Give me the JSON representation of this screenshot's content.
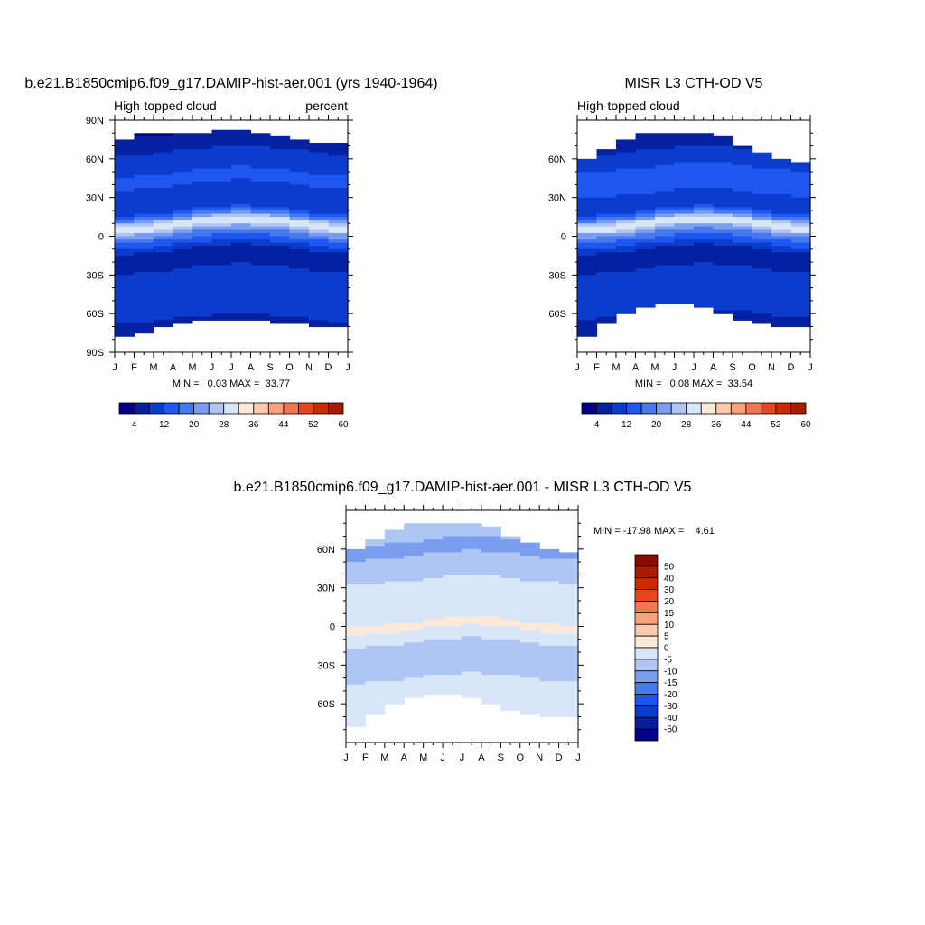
{
  "palettes": {
    "abs": [
      "#00008c",
      "#0520a0",
      "#0b3ccd",
      "#1e56f0",
      "#4678ee",
      "#7a9df0",
      "#afc6f5",
      "#d8e6f8",
      "#fde9d8",
      "#fbc9ad",
      "#f7a27d",
      "#f1774f",
      "#e9461e",
      "#cc2a06",
      "#a91b03",
      "#8a0a00"
    ],
    "diff": [
      "#00008c",
      "#061ea0",
      "#0b3ccd",
      "#1e56f0",
      "#4678ee",
      "#7a9df0",
      "#afc6f5",
      "#d8e6f8",
      "#fde9d8",
      "#fbc9ad",
      "#f7a27d",
      "#f1774f",
      "#e9461e",
      "#cc2a06",
      "#a91b03",
      "#8a0a00"
    ]
  },
  "chart_data": [
    {
      "type": "heatmap",
      "title": "b.e21.B1850cmip6.f09_g17.DAMIP-hist-aer.001 (yrs 1940-1964)",
      "left_string": "High-topped cloud",
      "right_string": "percent",
      "x_tick_labels": [
        "J",
        "F",
        "M",
        "A",
        "M",
        "J",
        "J",
        "A",
        "S",
        "O",
        "N",
        "D",
        "J"
      ],
      "y_tick_labels": [
        "90N",
        "60N",
        "30N",
        "0",
        "30S",
        "60S",
        "90S"
      ],
      "ylim": [
        -90,
        90
      ],
      "stats_label": "MIN =   0.03 MAX =  33.77",
      "min": 0.03,
      "max": 33.77,
      "colorbar_levels": [
        0,
        4,
        8,
        12,
        16,
        20,
        24,
        28,
        32,
        36,
        40,
        44,
        48,
        52,
        56,
        60
      ],
      "colorbar_tick_labels": [
        "4",
        "12",
        "20",
        "28",
        "36",
        "44",
        "52",
        "60"
      ],
      "coverage_north": [
        72,
        79,
        79,
        79,
        80,
        82,
        83,
        82,
        80,
        77,
        74,
        71,
        72
      ],
      "coverage_south": [
        -78,
        -78,
        -71,
        -68,
        -66,
        -65,
        -65,
        -66,
        -66,
        -67,
        -70,
        -71,
        -71
      ],
      "zonal_profile_lat": [
        -90,
        -80,
        -70,
        -60,
        -50,
        -40,
        -30,
        -20,
        -15,
        -10,
        -5,
        0,
        5,
        8,
        10,
        12,
        15,
        20,
        25,
        30,
        40,
        50,
        60,
        70,
        80,
        90
      ],
      "zonal_profile_values": [
        2,
        4,
        6,
        9,
        11,
        12,
        10,
        6,
        4,
        8,
        13,
        17,
        24,
        30,
        31,
        28,
        20,
        12,
        8,
        9,
        12,
        12,
        10,
        7,
        4,
        2
      ]
    },
    {
      "type": "heatmap",
      "title": "MISR L3 CTH-OD V5",
      "left_string": "High-topped cloud",
      "x_tick_labels": [
        "J",
        "F",
        "M",
        "A",
        "M",
        "J",
        "J",
        "A",
        "S",
        "O",
        "N",
        "D",
        "J"
      ],
      "y_tick_labels": [
        "60N",
        "30N",
        "0",
        "30S",
        "60S"
      ],
      "ylim": [
        -90,
        90
      ],
      "stats_label": "MIN =   0.08 MAX =  33.54",
      "min": 0.08,
      "max": 33.54,
      "colorbar_levels": [
        0,
        4,
        8,
        12,
        16,
        20,
        24,
        28,
        32,
        36,
        40,
        44,
        48,
        52,
        56,
        60
      ],
      "colorbar_tick_labels": [
        "4",
        "12",
        "20",
        "28",
        "36",
        "44",
        "52",
        "60"
      ],
      "coverage_north": [
        59,
        63,
        72,
        80,
        80,
        81,
        80,
        82,
        73,
        67,
        63,
        57,
        57
      ],
      "coverage_south": [
        -78,
        -76,
        -61,
        -57,
        -53,
        -52,
        -52,
        -56,
        -63,
        -67,
        -70,
        -71,
        -71
      ],
      "zonal_profile_lat": [
        -90,
        -80,
        -70,
        -60,
        -50,
        -40,
        -30,
        -20,
        -15,
        -10,
        -5,
        0,
        5,
        8,
        10,
        12,
        15,
        20,
        25,
        30,
        40,
        50,
        60,
        70,
        80,
        90
      ],
      "zonal_profile_values": [
        2,
        4,
        6,
        8,
        10,
        12,
        10,
        6,
        4,
        8,
        13,
        17,
        23,
        30,
        31,
        28,
        20,
        12,
        10,
        11,
        14,
        13,
        10,
        7,
        4,
        2
      ]
    },
    {
      "type": "heatmap",
      "title": "b.e21.B1850cmip6.f09_g17.DAMIP-hist-aer.001 - MISR L3 CTH-OD V5",
      "x_tick_labels": [
        "J",
        "F",
        "M",
        "A",
        "M",
        "J",
        "J",
        "A",
        "S",
        "O",
        "N",
        "D",
        "J"
      ],
      "y_tick_labels": [
        "60N",
        "30N",
        "0",
        "30S",
        "60S"
      ],
      "ylim": [
        -90,
        90
      ],
      "stats_label": "MIN = -17.98 MAX =    4.61",
      "min": -17.98,
      "max": 4.61,
      "colorbar_levels": [
        -60,
        -50,
        -40,
        -30,
        -20,
        -15,
        -10,
        -5,
        0,
        5,
        10,
        15,
        20,
        30,
        40,
        50,
        60
      ],
      "colorbar_tick_labels": [
        "50",
        "40",
        "30",
        "20",
        "15",
        "10",
        "5",
        "0",
        "-5",
        "-10",
        "-15",
        "-20",
        "-30",
        "-40",
        "-50"
      ],
      "coverage_north": [
        59,
        63,
        72,
        80,
        80,
        81,
        80,
        82,
        73,
        67,
        63,
        57,
        57
      ],
      "coverage_south": [
        -78,
        -76,
        -61,
        -57,
        -53,
        -52,
        -52,
        -56,
        -63,
        -67,
        -70,
        -71,
        -71
      ],
      "zonal_profile_lat": [
        -90,
        -60,
        -45,
        -30,
        -20,
        -10,
        -5,
        0,
        5,
        10,
        15,
        20,
        30,
        45,
        60,
        90
      ],
      "zonal_profile_values": [
        -2,
        -3,
        -4,
        -7,
        -8,
        -4,
        -2,
        2,
        -1,
        -3,
        -4,
        -3,
        -3,
        -8,
        -11,
        -6
      ]
    }
  ]
}
